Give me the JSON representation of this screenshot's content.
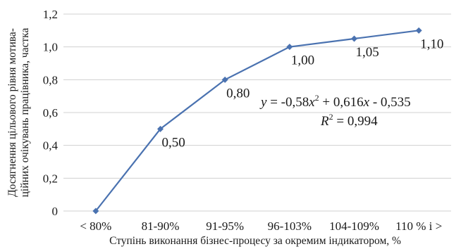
{
  "chart_data": {
    "type": "line",
    "categories": [
      "< 80%",
      "81-90%",
      "91-95%",
      "96-103%",
      "104-109%",
      "110 % і >"
    ],
    "values": [
      0,
      0.5,
      0.8,
      1.0,
      1.05,
      1.1
    ],
    "data_labels": [
      "",
      "0,50",
      "0,80",
      "1,00",
      "1,05",
      "1,10"
    ],
    "yticks": [
      0,
      0.2,
      0.4,
      0.6,
      0.8,
      1.0,
      1.2
    ],
    "ytick_labels": [
      "0",
      "0,2",
      "0,4",
      "0,6",
      "0,8",
      "1,0",
      "1,2"
    ],
    "ylim": [
      0,
      1.2
    ],
    "xlabel": "Ступінь виконання бізнес-процесу за окремим індикатором, %",
    "ylabel_line1": "Досягнення цільового рівня мотива-",
    "ylabel_line2": "ційних очікувань працівника, частка",
    "grid": true,
    "line_color": "#4a72b0",
    "trendline": {
      "eq_prefix": "y",
      "eq_main": " = -0,58",
      "eq_var1": "x",
      "eq_sup": "2",
      "eq_mid": " + 0,616",
      "eq_var2": "x",
      "eq_tail": " - 0,535",
      "r2_var": "R",
      "r2_sup": "2",
      "r2_value": " = 0,994"
    }
  }
}
